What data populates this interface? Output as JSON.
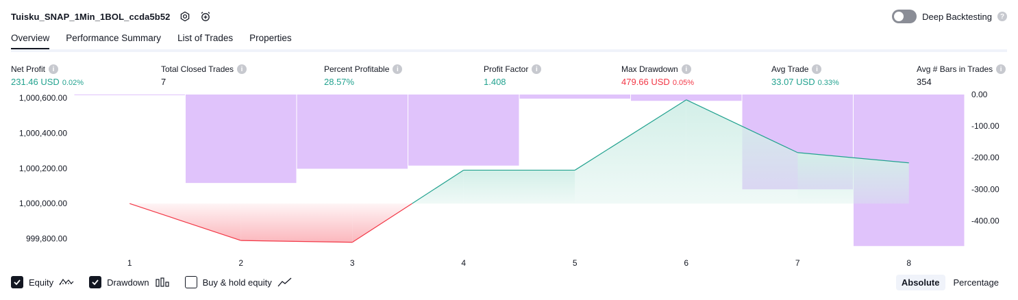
{
  "header": {
    "strategy_name": "Tuisku_SNAP_1Min_1BOL_ccda5b52",
    "deep_backtesting_label": "Deep Backtesting"
  },
  "tabs": [
    {
      "label": "Overview",
      "active": true
    },
    {
      "label": "Performance Summary",
      "active": false
    },
    {
      "label": "List of Trades",
      "active": false
    },
    {
      "label": "Properties",
      "active": false
    }
  ],
  "metrics": {
    "net_profit": {
      "label": "Net Profit",
      "value": "231.46 USD",
      "pct": "0.02%"
    },
    "total_closed_trades": {
      "label": "Total Closed Trades",
      "value": "7"
    },
    "percent_profitable": {
      "label": "Percent Profitable",
      "value": "28.57%"
    },
    "profit_factor": {
      "label": "Profit Factor",
      "value": "1.408"
    },
    "max_drawdown": {
      "label": "Max Drawdown",
      "value": "479.66 USD",
      "pct": "0.05%"
    },
    "avg_trade": {
      "label": "Avg Trade",
      "value": "33.07 USD",
      "pct": "0.33%"
    },
    "avg_bars": {
      "label": "Avg # Bars in Trades",
      "value": "354"
    }
  },
  "legend": {
    "equity": "Equity",
    "drawdown": "Drawdown",
    "buy_hold": "Buy & hold equity",
    "equity_checked": true,
    "drawdown_checked": true,
    "buy_hold_checked": false
  },
  "mode": {
    "absolute": "Absolute",
    "percentage": "Percentage",
    "selected": "Absolute"
  },
  "colors": {
    "equity_line": "#22a28f",
    "equity_fill": "#d3efe8",
    "equity_loss_line": "#f23645",
    "equity_loss_fill": "#fbb7bd",
    "drawdown_bar": "#e0c3fb",
    "profit_text": "#22a28f",
    "loss_text": "#f23645"
  },
  "chart_data": {
    "type": "line",
    "x": [
      1,
      2,
      3,
      4,
      5,
      6,
      7,
      8
    ],
    "xlim": [
      0.5,
      8.5
    ],
    "series": [
      {
        "name": "Equity",
        "axis": "left",
        "values": [
          1000000.0,
          999790.0,
          999780.0,
          1000190.0,
          1000190.0,
          1000590.0,
          1000290.0,
          1000231.46
        ]
      },
      {
        "name": "Drawdown",
        "axis": "right",
        "type": "bar",
        "values": [
          0.0,
          -280.0,
          -235.0,
          -225.0,
          -13.0,
          -20.0,
          -300.0,
          -479.66
        ]
      }
    ],
    "left_axis": {
      "ylim": [
        999740,
        1000620
      ],
      "ticks": [
        "1,000,600.00",
        "1,000,400.00",
        "1,000,200.00",
        "1,000,000.00",
        "999,800.00"
      ],
      "tick_values": [
        1000600,
        1000400,
        1000200,
        1000000,
        999800
      ]
    },
    "right_axis": {
      "ylim": [
        -490,
        0
      ],
      "ticks": [
        "0.00",
        "-100.00",
        "-200.00",
        "-300.00",
        "-400.00"
      ],
      "tick_values": [
        0,
        -100,
        -200,
        -300,
        -400
      ]
    },
    "baseline": 1000000.0,
    "grid": false
  }
}
